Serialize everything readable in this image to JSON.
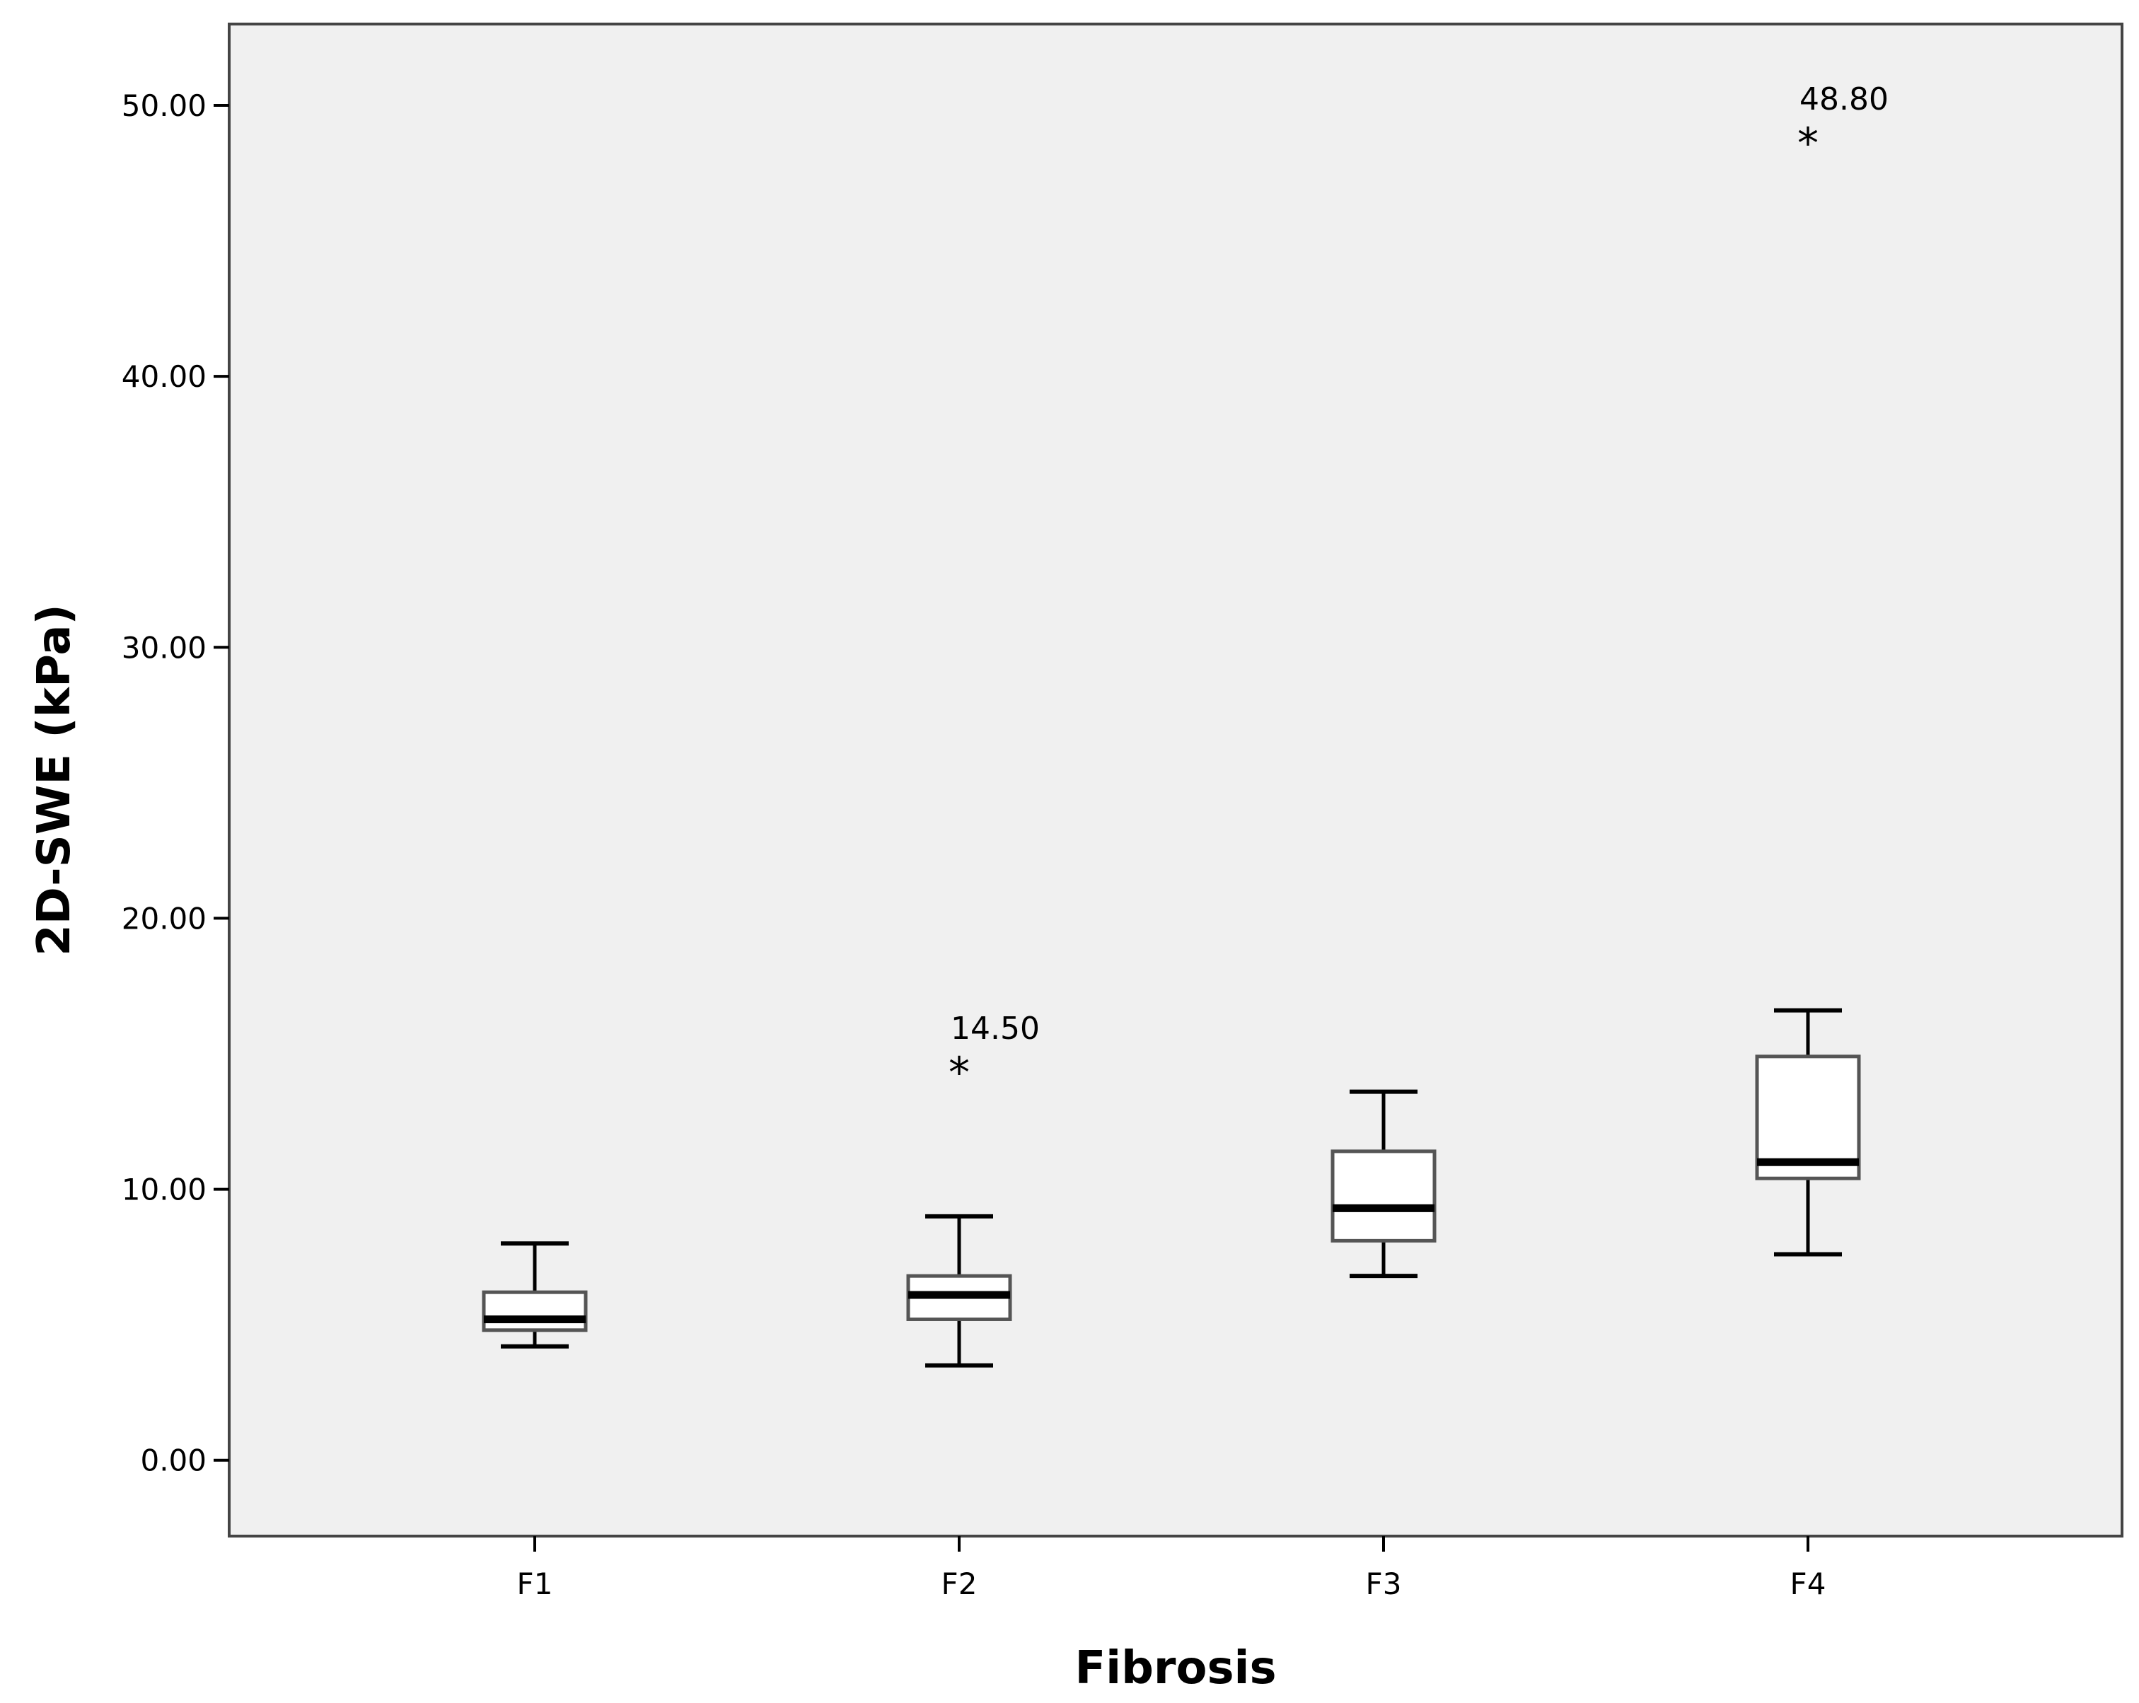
{
  "chart_data": {
    "type": "box",
    "xlabel": "Fibrosis",
    "ylabel": "2D-SWE (kPa)",
    "ylim": [
      -2.8,
      53
    ],
    "yticks": [
      "0.00",
      "10.00",
      "20.00",
      "30.00",
      "40.00",
      "50.00"
    ],
    "grid": false,
    "legend": false,
    "colors": {
      "plot_background": "#f0f0f0",
      "box_fill": "#ffffff",
      "lines": "#000000",
      "box_outline": "#555555"
    },
    "categories": [
      "F1",
      "F2",
      "F3",
      "F4"
    ],
    "boxes": [
      {
        "category": "F1",
        "whisker_low": 4.2,
        "q1": 4.8,
        "median": 5.2,
        "q3": 6.2,
        "whisker_high": 8.0,
        "outliers": []
      },
      {
        "category": "F2",
        "whisker_low": 3.5,
        "q1": 5.2,
        "median": 6.1,
        "q3": 6.8,
        "whisker_high": 9.0,
        "outliers": [
          {
            "value": 14.5,
            "label": "14.50",
            "marker": "*"
          }
        ]
      },
      {
        "category": "F3",
        "whisker_low": 6.8,
        "q1": 8.1,
        "median": 9.3,
        "q3": 11.4,
        "whisker_high": 13.6,
        "outliers": []
      },
      {
        "category": "F4",
        "whisker_low": 7.6,
        "q1": 10.4,
        "median": 11.0,
        "q3": 14.9,
        "whisker_high": 16.6,
        "outliers": [
          {
            "value": 48.8,
            "label": "48.80",
            "marker": "*"
          }
        ]
      }
    ]
  }
}
